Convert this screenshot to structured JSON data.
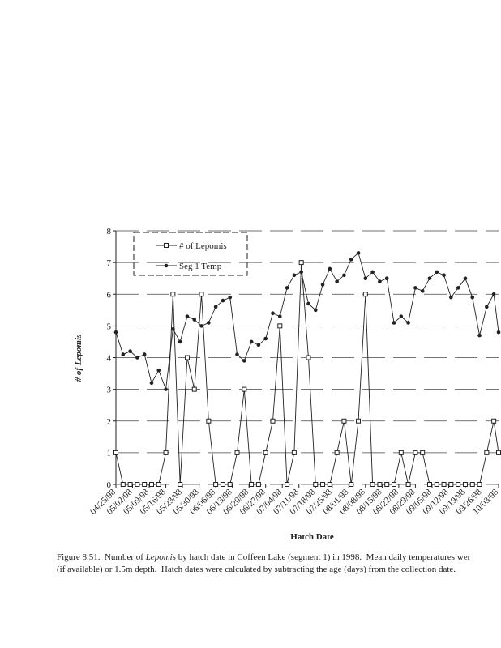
{
  "chart_data": {
    "type": "line",
    "y_label": "# of Lepomis",
    "x_label": "Hatch Date",
    "caption": {
      "parts": [
        "Figure 8.51.  Number of ",
        "Lepomis",
        " by hatch date in Coffeen Lake (segment 1) in 1998.  Mean daily temperatures wer"
      ],
      "line2": "(if available) or 1.5m depth.  Hatch dates were calculated by subtracting the age (days) from the collection date."
    },
    "x": [
      "04/25/98",
      "04/28/98",
      "05/01/98",
      "05/04/98",
      "05/07/98",
      "05/10/98",
      "05/13/98",
      "05/16/98",
      "05/19/98",
      "05/22/98",
      "05/25/98",
      "05/28/98",
      "05/31/98",
      "06/03/98",
      "06/06/98",
      "06/09/98",
      "06/12/98",
      "06/15/98",
      "06/18/98",
      "06/21/98",
      "06/24/98",
      "06/27/98",
      "06/30/98",
      "07/03/98",
      "07/06/98",
      "07/09/98",
      "07/12/98",
      "07/15/98",
      "07/18/98",
      "07/21/98",
      "07/24/98",
      "07/27/98",
      "07/30/98",
      "08/02/98",
      "08/05/98",
      "08/08/98",
      "08/11/98",
      "08/14/98",
      "08/17/98",
      "08/20/98",
      "08/23/98",
      "08/26/98",
      "08/29/98",
      "09/01/98",
      "09/04/98",
      "09/07/98",
      "09/10/98",
      "09/13/98",
      "09/16/98",
      "09/19/98",
      "09/22/98",
      "09/25/98",
      "09/28/98",
      "10/01/98",
      "10/03/98"
    ],
    "series": [
      {
        "name": "# of Lepomis",
        "color": "#222222",
        "marker": "square",
        "values": [
          1,
          0,
          0,
          0,
          0,
          0,
          0,
          1,
          6,
          0,
          4,
          3,
          6,
          2,
          0,
          0,
          0,
          1,
          3,
          0,
          0,
          1,
          2,
          5,
          0,
          1,
          7,
          4,
          0,
          0,
          0,
          1,
          2,
          0,
          2,
          6,
          0,
          0,
          0,
          0,
          1,
          0,
          1,
          1,
          0,
          0,
          0,
          0,
          0,
          0,
          0,
          0,
          1,
          2,
          1
        ]
      },
      {
        "name": "Seg 1 Temp",
        "color": "#222222",
        "marker": "dot",
        "values": [
          4.8,
          4.1,
          4.2,
          4.0,
          4.1,
          3.2,
          3.6,
          3.0,
          4.9,
          4.5,
          5.3,
          5.2,
          5.0,
          5.1,
          5.6,
          5.8,
          5.9,
          4.1,
          3.9,
          4.5,
          4.4,
          4.6,
          5.4,
          5.3,
          6.2,
          6.6,
          6.7,
          5.7,
          5.5,
          6.3,
          6.8,
          6.4,
          6.6,
          7.1,
          7.3,
          6.5,
          6.7,
          6.4,
          6.5,
          5.1,
          5.3,
          5.1,
          6.2,
          6.1,
          6.5,
          6.7,
          6.6,
          5.9,
          6.2,
          6.5,
          5.9,
          4.7,
          5.6,
          6.0,
          4.8
        ]
      }
    ],
    "xlim": [
      "04/25/98",
      "10/03/98"
    ],
    "xticks": [
      "04/25/98",
      "05/02/98",
      "05/09/98",
      "05/16/98",
      "05/23/98",
      "05/30/98",
      "06/06/98",
      "06/13/98",
      "06/20/98",
      "06/27/98",
      "07/04/98",
      "07/11/98",
      "07/18/98",
      "07/25/98",
      "08/01/98",
      "08/08/98",
      "08/15/98",
      "08/22/98",
      "08/29/98",
      "09/05/98",
      "09/12/98",
      "09/19/98",
      "09/26/98",
      "10/03/98"
    ],
    "ylim": [
      0,
      8
    ],
    "yticks": [
      0,
      1,
      2,
      3,
      4,
      5,
      6,
      7,
      8
    ],
    "grid": true
  }
}
